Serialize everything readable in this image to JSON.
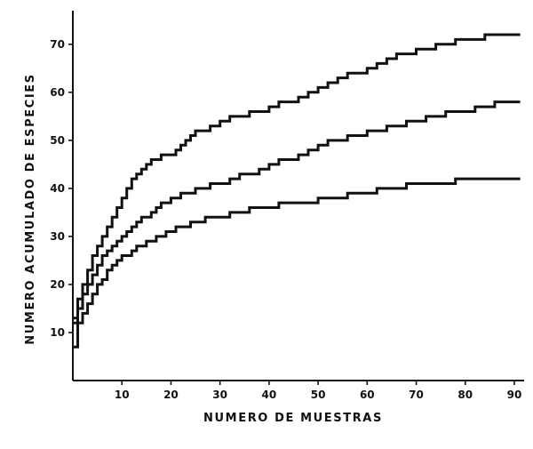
{
  "chart_data": {
    "type": "line",
    "title": "",
    "xlabel": "NUMERO DE MUESTRAS",
    "ylabel": "NUMERO ACUMULADO DE ESPECIES",
    "xlim": [
      0,
      92
    ],
    "ylim": [
      0,
      77
    ],
    "x_ticks": [
      10,
      20,
      30,
      40,
      50,
      60,
      70,
      80,
      90
    ],
    "y_ticks": [
      10,
      20,
      30,
      40,
      50,
      60,
      70
    ],
    "x_tick_labels": [
      "10",
      "20",
      "30",
      "40",
      "50",
      "60",
      "70",
      "80",
      "90"
    ],
    "y_tick_labels": [
      "10",
      "20",
      "30",
      "40",
      "50",
      "60",
      "70"
    ],
    "grid": false,
    "legend": "none",
    "line_color": "#111111",
    "series": [
      {
        "x": [
          0,
          1,
          2,
          3,
          4,
          5,
          6,
          7,
          8,
          9,
          10,
          11,
          12,
          13,
          14,
          15,
          16,
          17,
          18,
          19,
          20,
          21,
          22,
          23,
          24,
          25,
          26,
          27,
          28,
          29,
          30,
          32,
          34,
          36,
          38,
          40,
          42,
          44,
          46,
          48,
          50,
          52,
          54,
          56,
          58,
          60,
          62,
          64,
          66,
          68,
          70,
          72,
          74,
          76,
          78,
          80,
          82,
          84,
          86,
          88,
          90
        ],
        "values": [
          13,
          17,
          20,
          23,
          26,
          28,
          30,
          32,
          34,
          36,
          38,
          40,
          42,
          43,
          44,
          45,
          46,
          46,
          47,
          47,
          47,
          48,
          49,
          50,
          51,
          52,
          52,
          52,
          53,
          53,
          54,
          55,
          55,
          56,
          56,
          57,
          58,
          58,
          59,
          60,
          61,
          62,
          63,
          64,
          64,
          65,
          66,
          67,
          68,
          68,
          69,
          69,
          70,
          70,
          71,
          71,
          71,
          72,
          72,
          72,
          72
        ]
      },
      {
        "x": [
          0,
          1,
          2,
          3,
          4,
          5,
          6,
          7,
          8,
          9,
          10,
          11,
          12,
          13,
          14,
          15,
          16,
          17,
          18,
          19,
          20,
          21,
          22,
          23,
          24,
          25,
          26,
          27,
          28,
          29,
          30,
          32,
          34,
          36,
          38,
          40,
          42,
          44,
          46,
          48,
          50,
          52,
          54,
          56,
          58,
          60,
          62,
          64,
          66,
          68,
          70,
          72,
          74,
          76,
          78,
          80,
          82,
          84,
          86,
          88,
          90
        ],
        "values": [
          12,
          15,
          18,
          20,
          22,
          24,
          26,
          27,
          28,
          29,
          30,
          31,
          32,
          33,
          34,
          34,
          35,
          36,
          37,
          37,
          38,
          38,
          39,
          39,
          39,
          40,
          40,
          40,
          41,
          41,
          41,
          42,
          43,
          43,
          44,
          45,
          46,
          46,
          47,
          48,
          49,
          50,
          50,
          51,
          51,
          52,
          52,
          53,
          53,
          54,
          54,
          55,
          55,
          56,
          56,
          56,
          57,
          57,
          58,
          58,
          58
        ]
      },
      {
        "x": [
          0,
          1,
          2,
          3,
          4,
          5,
          6,
          7,
          8,
          9,
          10,
          11,
          12,
          13,
          14,
          15,
          16,
          17,
          18,
          19,
          20,
          21,
          22,
          23,
          24,
          25,
          26,
          27,
          28,
          29,
          30,
          32,
          34,
          36,
          38,
          40,
          42,
          44,
          46,
          48,
          50,
          52,
          54,
          56,
          58,
          60,
          62,
          64,
          66,
          68,
          70,
          72,
          74,
          76,
          78,
          80,
          82,
          84,
          86,
          88,
          90
        ],
        "values": [
          7,
          12,
          14,
          16,
          18,
          20,
          21,
          23,
          24,
          25,
          26,
          26,
          27,
          28,
          28,
          29,
          29,
          30,
          30,
          31,
          31,
          32,
          32,
          32,
          33,
          33,
          33,
          34,
          34,
          34,
          34,
          35,
          35,
          36,
          36,
          36,
          37,
          37,
          37,
          37,
          38,
          38,
          38,
          39,
          39,
          39,
          40,
          40,
          40,
          41,
          41,
          41,
          41,
          41,
          42,
          42,
          42,
          42,
          42,
          42,
          42
        ]
      }
    ]
  }
}
